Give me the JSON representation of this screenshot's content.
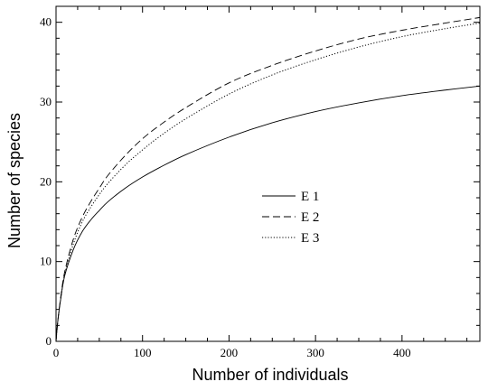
{
  "chart_data": {
    "type": "line",
    "title": "",
    "xlabel": "Number of individuals",
    "ylabel": "Number of species",
    "xlim": [
      0,
      490
    ],
    "ylim": [
      0,
      42
    ],
    "xticks": [
      0,
      100,
      200,
      300,
      400
    ],
    "yticks": [
      0,
      10,
      20,
      30,
      40
    ],
    "grid": false,
    "legend_position": "center",
    "series": [
      {
        "name": "E 1",
        "dash": "solid",
        "x": [
          0,
          2,
          5,
          10,
          20,
          30,
          40,
          50,
          60,
          80,
          100,
          120,
          150,
          200,
          250,
          300,
          350,
          400,
          450,
          490
        ],
        "y": [
          0,
          2.5,
          5,
          8.2,
          11.5,
          13.7,
          15.2,
          16.4,
          17.5,
          19.2,
          20.6,
          21.8,
          23.4,
          25.6,
          27.4,
          28.8,
          29.9,
          30.8,
          31.5,
          32.0
        ]
      },
      {
        "name": "E 2",
        "dash": "dashed",
        "x": [
          0,
          2,
          5,
          10,
          20,
          30,
          40,
          50,
          60,
          80,
          100,
          120,
          150,
          200,
          250,
          300,
          350,
          400,
          450,
          490
        ],
        "y": [
          0,
          2.5,
          5.2,
          8.7,
          12.8,
          15.5,
          17.5,
          19.2,
          20.8,
          23.3,
          25.4,
          27.1,
          29.3,
          32.4,
          34.6,
          36.4,
          37.9,
          39.0,
          39.9,
          40.6
        ]
      },
      {
        "name": "E 3",
        "dash": "dotted",
        "x": [
          0,
          2,
          5,
          10,
          20,
          30,
          40,
          50,
          60,
          80,
          100,
          120,
          150,
          200,
          250,
          300,
          350,
          400,
          450,
          490
        ],
        "y": [
          0,
          2.4,
          5.0,
          8.4,
          12.2,
          14.9,
          16.8,
          18.4,
          19.8,
          22.1,
          24.0,
          25.7,
          27.9,
          31.0,
          33.4,
          35.3,
          36.9,
          38.2,
          39.2,
          39.9
        ]
      }
    ]
  }
}
